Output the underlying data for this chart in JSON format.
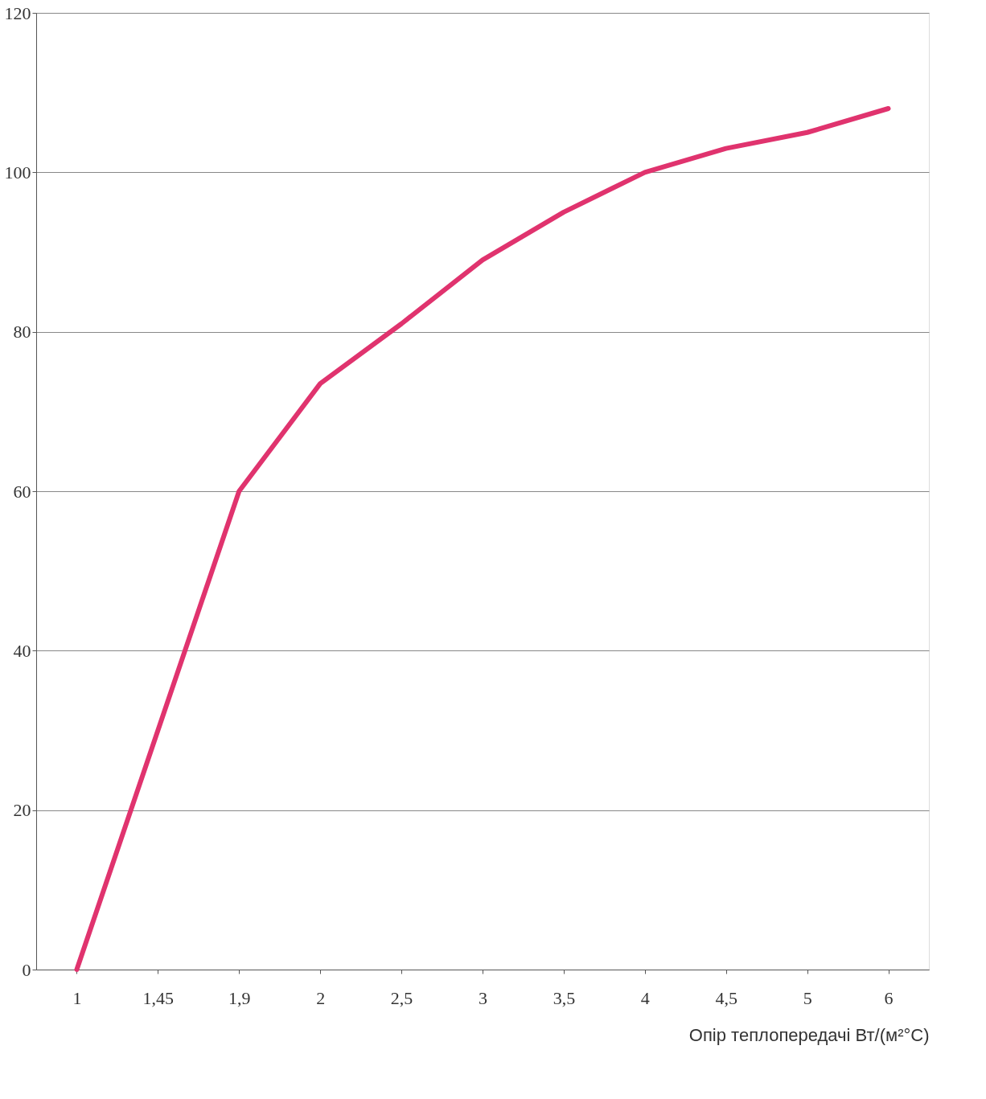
{
  "chart_data": {
    "type": "line",
    "xlabel": "Опір теплопередачі Вт/(м²°С)",
    "categories": [
      "1",
      "1,45",
      "1,9",
      "2",
      "2,5",
      "3",
      "3,5",
      "4",
      "4,5",
      "5",
      "6"
    ],
    "series": [
      {
        "color": "#e0336e",
        "values": [
          0,
          30,
          60,
          73.5,
          81,
          89,
          95,
          100,
          103,
          105,
          108
        ]
      }
    ],
    "ylim": [
      0,
      120
    ],
    "yticks": [
      0,
      20,
      40,
      60,
      80,
      100,
      120
    ],
    "grid": "y"
  }
}
